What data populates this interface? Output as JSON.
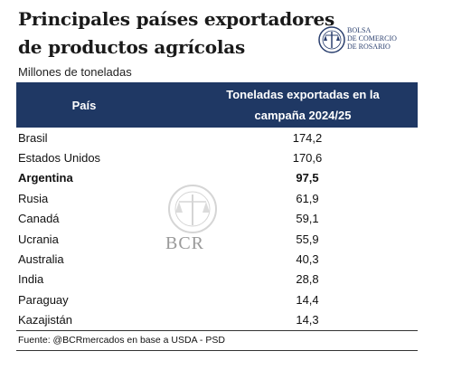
{
  "header": {
    "title_lines": [
      "Principales países exportadores",
      "de productos agrícolas"
    ],
    "subtitle": "Millones de toneladas",
    "logo_lines": [
      "BOLSA",
      "DE COMERCIO",
      "DE ROSARIO"
    ]
  },
  "table": {
    "columns": [
      "País",
      "Toneladas exportadas en la campaña 2024/25"
    ],
    "rows": [
      [
        "Brasil",
        "174,2"
      ],
      [
        "Estados Unidos",
        "170,6"
      ],
      [
        "Argentina",
        "97,5"
      ],
      [
        "Rusia",
        "61,9"
      ],
      [
        "Canadá",
        "59,1"
      ],
      [
        "Ucrania",
        "55,9"
      ],
      [
        "Australia",
        "40,3"
      ],
      [
        "India",
        "28,8"
      ],
      [
        "Paraguay",
        "14,4"
      ],
      [
        "Kazajistán",
        "14,3"
      ]
    ]
  },
  "watermark": {
    "text": "BCR"
  },
  "footer": {
    "source": "Fuente: @BCRmercados en base a USDA - PSD"
  }
}
